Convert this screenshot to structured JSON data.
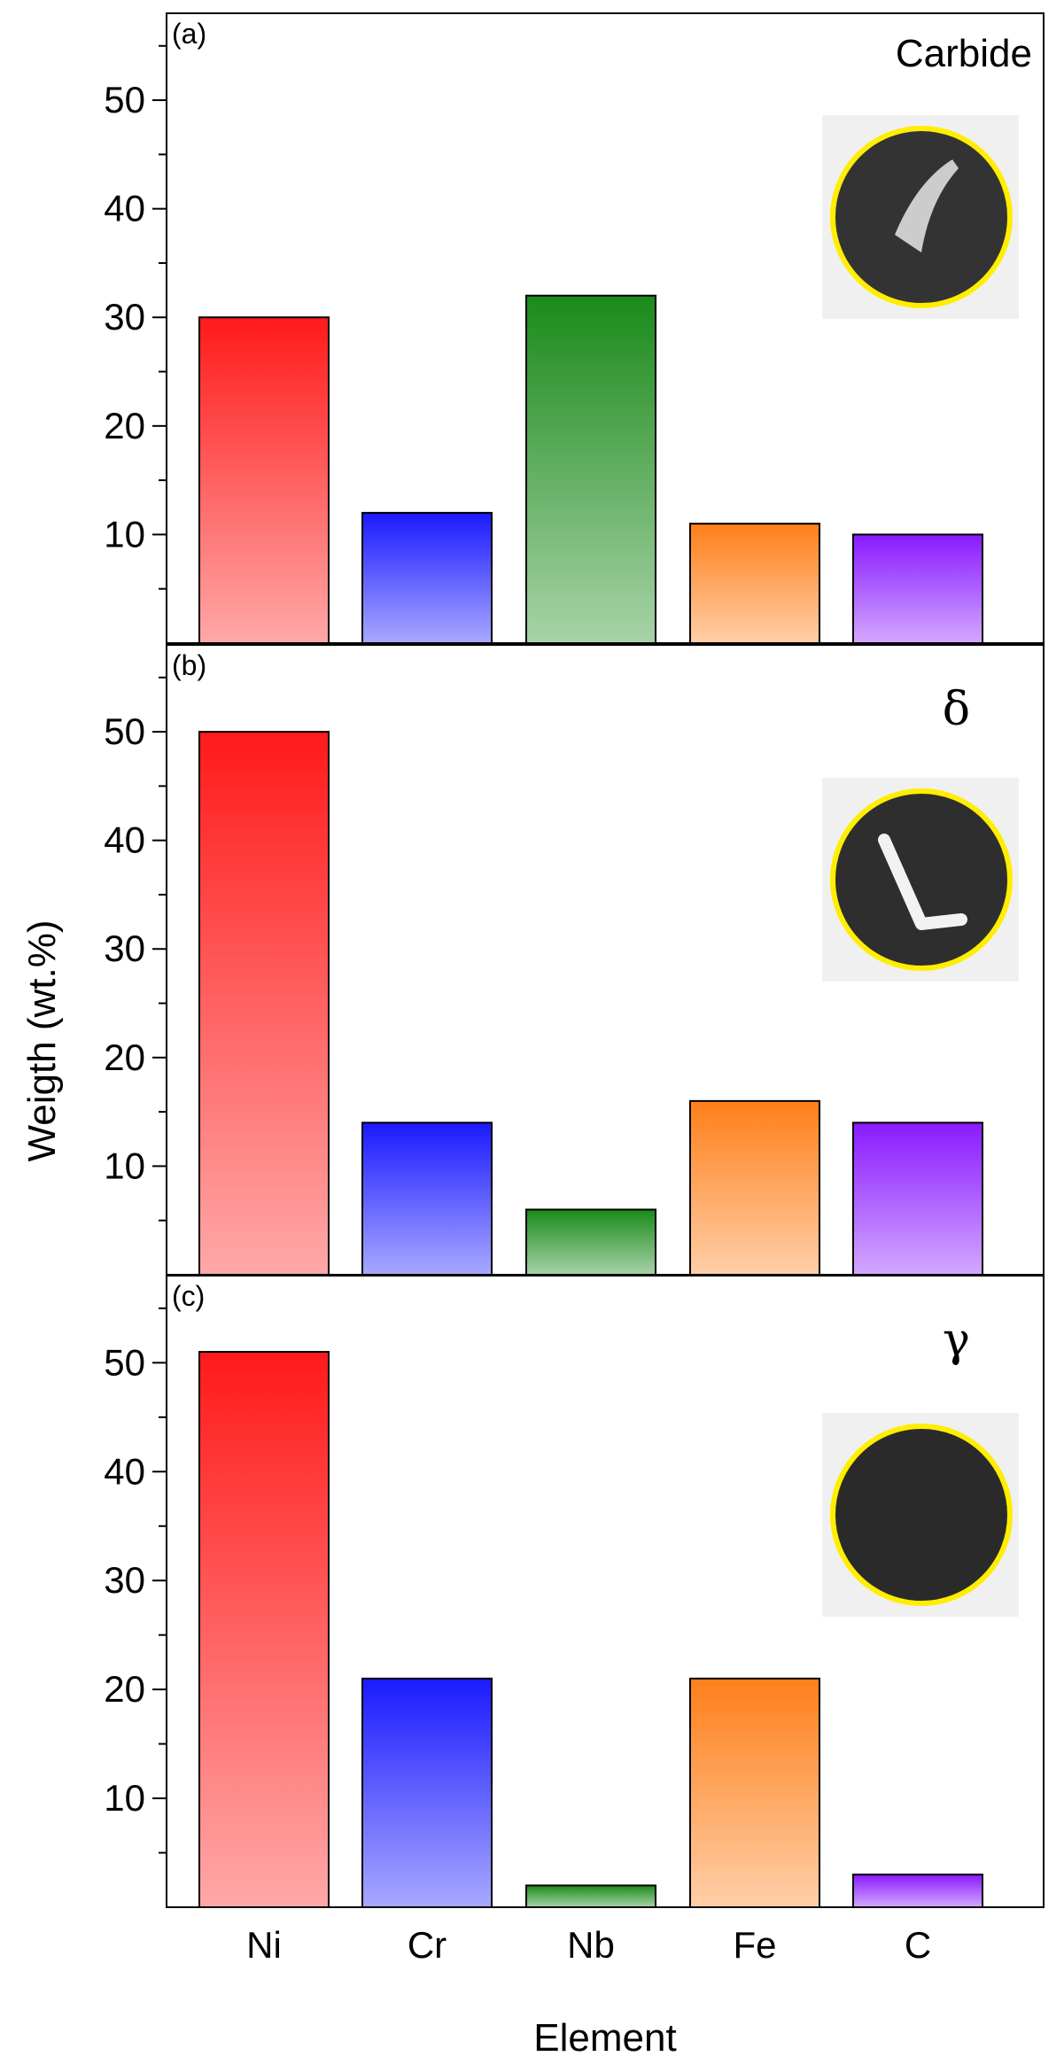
{
  "chart_data": {
    "type": "bar",
    "categories": [
      "Ni",
      "Cr",
      "Nb",
      "Fe",
      "C"
    ],
    "xlabel": "Element",
    "ylabel": "Weigth (wt.%)",
    "y_ticks": [
      10,
      20,
      30,
      40,
      50
    ],
    "ylim": [
      0,
      58
    ],
    "grid": false,
    "bar_colors": [
      "#ff1a1a",
      "#1a1aff",
      "#1a8a1a",
      "#ff7f1a",
      "#8a1aff"
    ],
    "panels": [
      {
        "label": "(a)",
        "phase": "Carbide",
        "values": [
          30,
          12,
          32,
          11,
          10
        ]
      },
      {
        "label": "(b)",
        "phase": "δ",
        "values": [
          50,
          14,
          6,
          16,
          14
        ]
      },
      {
        "label": "(c)",
        "phase": "γ",
        "values": [
          51,
          21,
          2,
          21,
          3
        ]
      }
    ]
  }
}
